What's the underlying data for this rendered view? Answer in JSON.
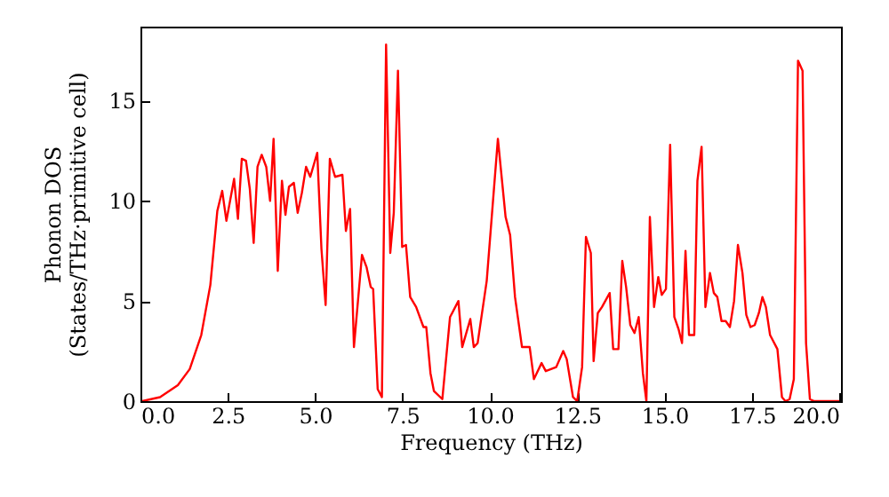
{
  "chart_data": {
    "type": "line",
    "xlabel": "Frequency (THz)",
    "ylabel": "Phonon DOS\n(States/THz·primitive cell)",
    "xlim": [
      0,
      20.05
    ],
    "ylim": [
      0,
      18.7
    ],
    "xticks": [
      {
        "value": 0,
        "label": "0.0"
      },
      {
        "value": 2.5,
        "label": "2.5"
      },
      {
        "value": 5,
        "label": "5.0"
      },
      {
        "value": 7.5,
        "label": "7.5"
      },
      {
        "value": 10,
        "label": "10.0"
      },
      {
        "value": 12.5,
        "label": "12.5"
      },
      {
        "value": 15,
        "label": "15.0"
      },
      {
        "value": 17.5,
        "label": "17.5"
      },
      {
        "value": 20,
        "label": "20.0"
      }
    ],
    "yticks": [
      0,
      5,
      10,
      15
    ],
    "grid": false,
    "marker": "none",
    "line_style": "solid",
    "series": [
      {
        "color": "#ff0000",
        "x": [
          0.05,
          0.56,
          1.07,
          1.41,
          1.74,
          2.0,
          2.2,
          2.34,
          2.46,
          2.68,
          2.79,
          2.9,
          3.02,
          3.13,
          3.24,
          3.35,
          3.47,
          3.6,
          3.71,
          3.81,
          3.93,
          4.05,
          4.15,
          4.25,
          4.39,
          4.5,
          4.62,
          4.74,
          4.86,
          5.06,
          5.18,
          5.3,
          5.42,
          5.57,
          5.78,
          5.88,
          6.0,
          6.11,
          6.34,
          6.47,
          6.59,
          6.66,
          6.79,
          6.91,
          7.03,
          7.15,
          7.25,
          7.37,
          7.49,
          7.6,
          7.72,
          7.89,
          8.1,
          8.18,
          8.3,
          8.4,
          8.64,
          8.86,
          9.1,
          9.21,
          9.44,
          9.54,
          9.65,
          9.91,
          10.23,
          10.45,
          10.58,
          10.72,
          10.92,
          11.14,
          11.26,
          11.48,
          11.6,
          11.9,
          12.1,
          12.2,
          12.38,
          12.5,
          12.64,
          12.75,
          12.89,
          12.97,
          13.09,
          13.21,
          13.43,
          13.53,
          13.68,
          13.79,
          13.9,
          14.02,
          14.14,
          14.26,
          14.38,
          14.48,
          14.58,
          14.7,
          14.82,
          14.92,
          15.04,
          15.16,
          15.28,
          15.4,
          15.5,
          15.6,
          15.7,
          15.85,
          15.94,
          16.06,
          16.17,
          16.3,
          16.41,
          16.51,
          16.63,
          16.75,
          16.87,
          16.99,
          17.1,
          17.23,
          17.34,
          17.46,
          17.58,
          17.7,
          17.8,
          17.9,
          18.02,
          18.23,
          18.36,
          18.46,
          18.58,
          18.7,
          18.82,
          18.95,
          19.05,
          19.16,
          19.28,
          20.0
        ],
        "values": [
          0,
          0.2,
          0.8,
          1.6,
          3.3,
          5.8,
          9.5,
          10.5,
          9.0,
          11.1,
          9.1,
          12.1,
          12.0,
          10.6,
          7.9,
          11.7,
          12.3,
          11.7,
          10.0,
          13.1,
          6.5,
          11.0,
          9.3,
          10.7,
          10.9,
          9.4,
          10.4,
          11.7,
          11.2,
          12.4,
          7.6,
          4.8,
          12.1,
          11.2,
          11.3,
          8.5,
          9.6,
          2.7,
          7.3,
          6.7,
          5.7,
          5.6,
          0.6,
          0.2,
          17.8,
          7.4,
          9.4,
          16.5,
          7.7,
          7.8,
          5.2,
          4.7,
          3.7,
          3.7,
          1.4,
          0.5,
          0.1,
          4.2,
          5.0,
          2.7,
          4.1,
          2.7,
          2.9,
          6.0,
          13.1,
          9.2,
          8.3,
          5.2,
          2.7,
          2.7,
          1.1,
          1.9,
          1.5,
          1.7,
          2.5,
          2.1,
          0.2,
          0,
          1.7,
          8.2,
          7.4,
          2.0,
          4.4,
          4.7,
          5.4,
          2.6,
          2.6,
          7.0,
          5.7,
          3.8,
          3.4,
          4.2,
          1.4,
          0,
          9.2,
          4.7,
          6.2,
          5.3,
          5.6,
          12.8,
          4.2,
          3.6,
          2.9,
          7.5,
          3.3,
          3.3,
          11.0,
          12.7,
          4.7,
          6.4,
          5.4,
          5.2,
          4.0,
          4.0,
          3.7,
          5.0,
          7.8,
          6.4,
          4.3,
          3.7,
          3.8,
          4.4,
          5.2,
          4.7,
          3.3,
          2.6,
          0.2,
          0,
          0.1,
          1.1,
          17.0,
          16.5,
          2.9,
          0.1,
          0,
          0
        ]
      }
    ]
  }
}
